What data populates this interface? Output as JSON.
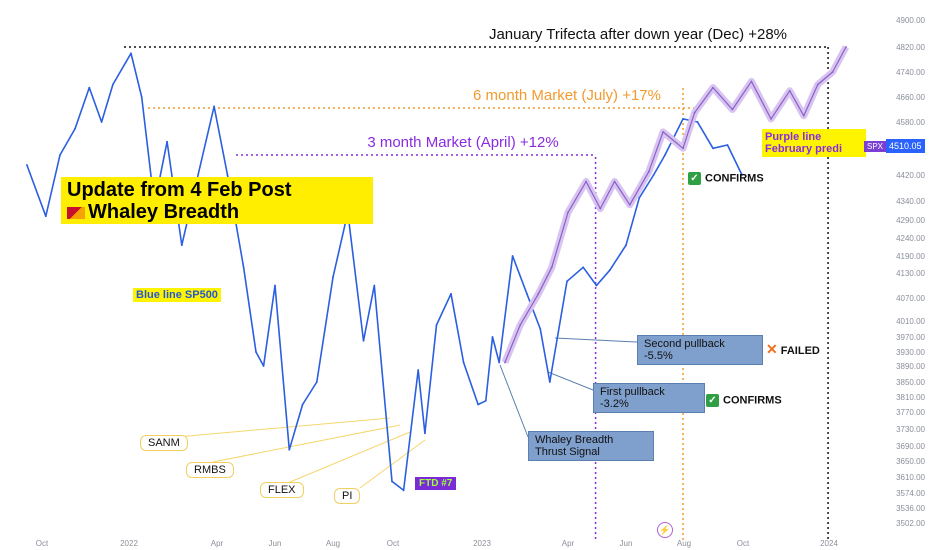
{
  "chart_data": {
    "type": "line",
    "title": "Update from 4 Feb Post",
    "subtitle": "Whaley Breadth",
    "y_ticks": [
      4900.0,
      4820.0,
      4740.0,
      4660.0,
      4580.0,
      4420.0,
      4340.0,
      4290.0,
      4240.0,
      4190.0,
      4130.0,
      4070.0,
      4010.0,
      3970.0,
      3930.0,
      3890.0,
      3850.0,
      3810.0,
      3770.0,
      3730.0,
      3690.0,
      3650.0,
      3610.0,
      3574.0,
      3536.0,
      3502.0
    ],
    "x_ticks": [
      "Oct",
      "2022",
      "Apr",
      "Jun",
      "Aug",
      "Oct",
      "2023",
      "Apr",
      "Jun",
      "Aug",
      "Oct",
      "2024"
    ],
    "series": [
      {
        "name": "Blue line SP500",
        "color": "#2b5fe0",
        "x": [
          "2021-09-15",
          "2021-10-05",
          "2021-10-20",
          "2021-11-05",
          "2021-11-20",
          "2021-12-03",
          "2021-12-15",
          "2022-01-03",
          "2022-01-14",
          "2022-01-27",
          "2022-02-09",
          "2022-02-24",
          "2022-03-08",
          "2022-03-29",
          "2022-04-12",
          "2022-04-29",
          "2022-05-12",
          "2022-05-20",
          "2022-06-01",
          "2022-06-16",
          "2022-06-30",
          "2022-07-15",
          "2022-08-01",
          "2022-08-16",
          "2022-09-01",
          "2022-09-12",
          "2022-09-30",
          "2022-10-12",
          "2022-10-27",
          "2022-11-03",
          "2022-11-15",
          "2022-11-30",
          "2022-12-13",
          "2022-12-28",
          "2023-01-05",
          "2023-01-12",
          "2023-01-19",
          "2023-02-02",
          "2023-02-17",
          "2023-03-03",
          "2023-03-13",
          "2023-03-31",
          "2023-04-17",
          "2023-05-01",
          "2023-05-15",
          "2023-06-01",
          "2023-06-15",
          "2023-06-30",
          "2023-07-12",
          "2023-07-31",
          "2023-08-15",
          "2023-08-31",
          "2023-09-15",
          "2023-09-30"
        ],
        "y": [
          4450,
          4300,
          4480,
          4560,
          4690,
          4580,
          4700,
          4800,
          4660,
          4330,
          4520,
          4220,
          4360,
          4630,
          4420,
          4150,
          3930,
          3890,
          4100,
          3680,
          3790,
          3850,
          4120,
          4310,
          3960,
          4100,
          3600,
          3580,
          3880,
          3720,
          4000,
          4080,
          3900,
          3790,
          3800,
          3970,
          3900,
          4190,
          4080,
          3990,
          3850,
          4110,
          4150,
          4100,
          4140,
          4220,
          4350,
          4420,
          4480,
          4590,
          4580,
          4500,
          4510,
          4420
        ]
      },
      {
        "name": "Purple line February prediction",
        "color": "#8b5fc8",
        "x": [
          "2023-01-25",
          "2023-02-10",
          "2023-03-01",
          "2023-03-15",
          "2023-04-01",
          "2023-04-20",
          "2023-05-05",
          "2023-05-20",
          "2023-06-05",
          "2023-06-25",
          "2023-07-10",
          "2023-07-31",
          "2023-08-12",
          "2023-08-31",
          "2023-09-20",
          "2023-10-10",
          "2023-10-31",
          "2023-11-20",
          "2023-12-05",
          "2023-12-20",
          "2024-01-05",
          "2024-01-20"
        ],
        "y": [
          3900,
          4000,
          4080,
          4150,
          4310,
          4400,
          4320,
          4400,
          4330,
          4430,
          4550,
          4500,
          4610,
          4690,
          4620,
          4710,
          4590,
          4680,
          4600,
          4700,
          4740,
          4820
        ]
      }
    ],
    "annotations": {
      "level_lines": [
        {
          "label": "January Trifecta after down year (Dec) +28%",
          "color": "#111111",
          "value": 4820
        },
        {
          "label": "6 month Market (July) +17%",
          "color": "#f29a2e",
          "value": 4625
        },
        {
          "label": "3 month Market (April) +12%",
          "color": "#8a2be2",
          "value": 4480
        }
      ],
      "vertical_markers": [
        {
          "color": "#8a2be2",
          "date": "2023-04-30"
        },
        {
          "color": "#f29a2e",
          "date": "2023-07-31"
        },
        {
          "color": "#111111",
          "date": "2023-12-31"
        }
      ]
    }
  },
  "labels": {
    "banner_line1": "Update from 4 Feb Post",
    "banner_line2": "Whaley Breadth",
    "blue_line_label": "Blue line SP500",
    "purple_line_label_1": "Purple line",
    "purple_line_label_2": "February predi",
    "spx_tag": "SPX",
    "spx_price": "4510.05",
    "tickers": [
      "SANM",
      "RMBS",
      "FLEX",
      "PI"
    ],
    "ftd": "FTD #7",
    "second_pullback_1": "Second pullback",
    "second_pullback_2": "-5.5%",
    "first_pullback_1": "First pullback",
    "first_pullback_2": "-3.2%",
    "whaley_1": "Whaley Breadth",
    "whaley_2": "Thrust Signal",
    "confirms": "CONFIRMS",
    "failed": "FAILED",
    "check_mark": "✓",
    "x_mark": "✕",
    "flash_icon": "⚡"
  },
  "colors": {
    "sp500_line": "#2b5fe0",
    "prediction_line": "#8b5fc8",
    "confirm_green": "#2ea043",
    "failed_orange": "#f07020",
    "banner_yellow": "#ffee00",
    "callout_blue": "#7f9fcc"
  }
}
